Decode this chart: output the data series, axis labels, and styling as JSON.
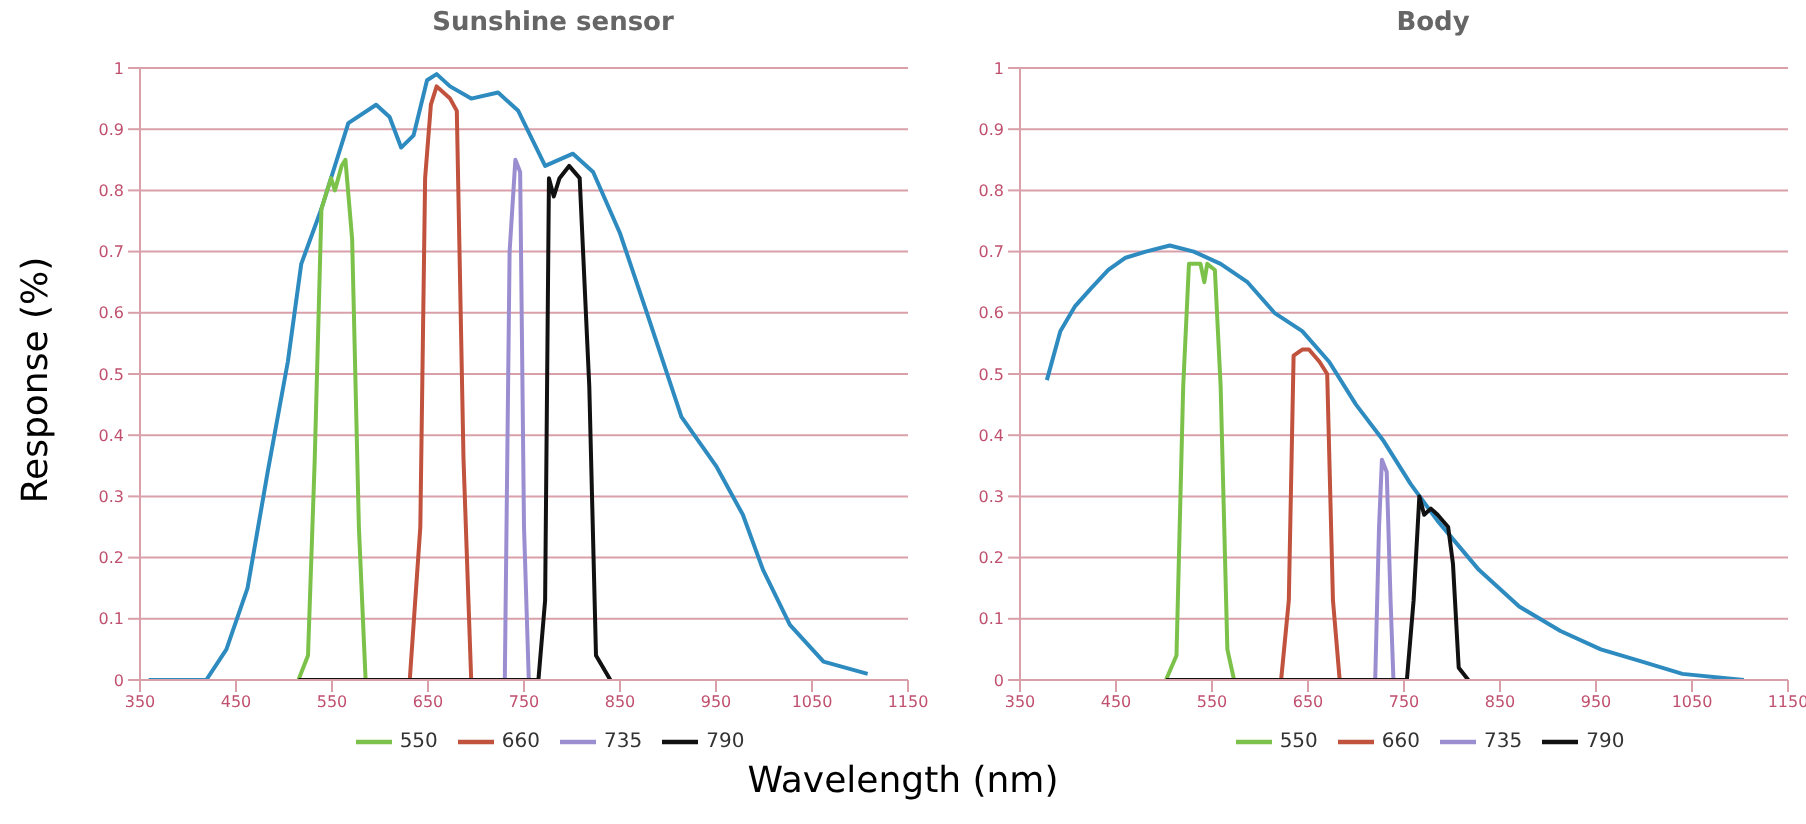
{
  "chart_data": [
    {
      "type": "line",
      "title": "Sunshine sensor",
      "ylabel": "Response (%)",
      "xlabel": "Wavelength (nm)",
      "xlim": [
        350,
        1150
      ],
      "xticks": [
        350,
        450,
        550,
        650,
        750,
        850,
        950,
        1050,
        1150
      ],
      "ylim": [
        0,
        1
      ],
      "yticks": [
        0,
        0.1,
        0.2,
        0.3,
        0.4,
        0.5,
        0.6,
        0.7,
        0.8,
        0.9,
        1
      ],
      "grid": "y",
      "legend": "bottom",
      "marker": "none",
      "line_style": "solid",
      "series": [
        {
          "color": "#2e8bc0",
          "x": [
            359,
            419,
            440,
            462,
            483,
            504,
            518,
            539,
            567,
            596,
            610,
            622,
            635,
            649,
            659,
            673,
            695,
            723,
            744,
            772,
            801,
            822,
            850,
            878,
            914,
            950,
            978,
            999,
            1027,
            1062,
            1108
          ],
          "values": [
            0,
            0,
            0.05,
            0.15,
            0.34,
            0.52,
            0.68,
            0.77,
            0.91,
            0.94,
            0.92,
            0.87,
            0.89,
            0.98,
            0.99,
            0.97,
            0.95,
            0.96,
            0.93,
            0.84,
            0.86,
            0.83,
            0.73,
            0.6,
            0.43,
            0.35,
            0.27,
            0.18,
            0.09,
            0.03,
            0.01
          ]
        },
        {
          "name": "550",
          "color": "#7cc24a",
          "x": [
            515,
            525,
            532,
            539,
            549,
            553,
            560,
            564,
            571,
            578,
            585
          ],
          "values": [
            0,
            0.04,
            0.36,
            0.77,
            0.82,
            0.8,
            0.84,
            0.85,
            0.72,
            0.25,
            0
          ]
        },
        {
          "name": "660",
          "color": "#c0523e",
          "x": [
            631,
            642,
            647,
            653,
            659,
            673,
            680,
            687,
            695
          ],
          "values": [
            0,
            0.25,
            0.82,
            0.94,
            0.97,
            0.95,
            0.93,
            0.36,
            0
          ]
        },
        {
          "name": "735",
          "color": "#9b8ed0",
          "x": [
            730,
            735,
            741,
            746,
            750,
            755
          ],
          "values": [
            0,
            0.7,
            0.85,
            0.83,
            0.25,
            0
          ]
        },
        {
          "name": "790",
          "color": "#111111",
          "x": [
            515,
            765,
            772,
            776,
            781,
            787,
            797,
            808,
            818,
            825,
            840
          ],
          "values": [
            0,
            0,
            0.13,
            0.82,
            0.79,
            0.82,
            0.84,
            0.82,
            0.48,
            0.04,
            0
          ]
        }
      ]
    },
    {
      "type": "line",
      "title": "Body",
      "xlim": [
        350,
        1150
      ],
      "xticks": [
        350,
        450,
        550,
        650,
        750,
        850,
        950,
        1050,
        1150
      ],
      "ylim": [
        0,
        1
      ],
      "yticks": [
        0,
        0.1,
        0.2,
        0.3,
        0.4,
        0.5,
        0.6,
        0.7,
        0.8,
        0.9,
        1
      ],
      "grid": "y",
      "legend": "bottom",
      "marker": "none",
      "line_style": "solid",
      "series": [
        {
          "color": "#2e8bc0",
          "x": [
            378,
            392,
            407,
            424,
            442,
            460,
            481,
            506,
            531,
            559,
            587,
            615,
            644,
            672,
            700,
            729,
            757,
            785,
            828,
            870,
            913,
            955,
            998,
            1040,
            1104
          ],
          "values": [
            0.49,
            0.57,
            0.61,
            0.64,
            0.67,
            0.69,
            0.7,
            0.71,
            0.7,
            0.68,
            0.65,
            0.6,
            0.57,
            0.52,
            0.45,
            0.39,
            0.32,
            0.26,
            0.18,
            0.12,
            0.08,
            0.05,
            0.03,
            0.01,
            0
          ]
        },
        {
          "name": "550",
          "color": "#7cc24a",
          "x": [
            502,
            513,
            520,
            526,
            538,
            542,
            545,
            553,
            559,
            566,
            573
          ],
          "values": [
            0,
            0.04,
            0.48,
            0.68,
            0.68,
            0.65,
            0.68,
            0.67,
            0.48,
            0.05,
            0
          ]
        },
        {
          "name": "660",
          "color": "#c0523e",
          "x": [
            622,
            630,
            635,
            644,
            651,
            662,
            670,
            676,
            683
          ],
          "values": [
            0,
            0.13,
            0.53,
            0.54,
            0.54,
            0.52,
            0.5,
            0.13,
            0
          ]
        },
        {
          "name": "735",
          "color": "#9b8ed0",
          "x": [
            720,
            724,
            727,
            732,
            736,
            739
          ],
          "values": [
            0,
            0.25,
            0.36,
            0.34,
            0.13,
            0
          ]
        },
        {
          "name": "790",
          "color": "#111111",
          "x": [
            502,
            753,
            760,
            766,
            771,
            778,
            785,
            796,
            801,
            807,
            817
          ],
          "values": [
            0,
            0,
            0.13,
            0.3,
            0.27,
            0.28,
            0.27,
            0.25,
            0.19,
            0.02,
            0
          ]
        }
      ]
    }
  ]
}
